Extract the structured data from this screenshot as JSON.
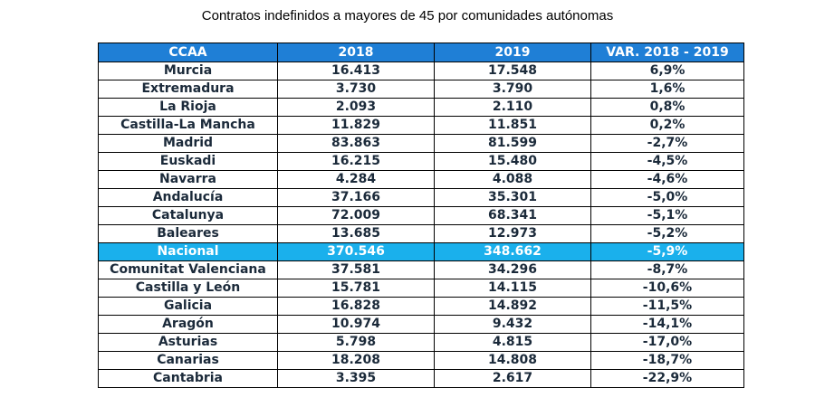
{
  "title": "Contratos indefinidos a mayores de 45 por comunidades autónomas",
  "table": {
    "headers": [
      "CCAA",
      "2018",
      "2019",
      "VAR. 2018 - 2019"
    ],
    "rows": [
      {
        "ccaa": "Murcia",
        "y2018": "16.413",
        "y2019": "17.548",
        "var": "6,9%",
        "highlight": false
      },
      {
        "ccaa": "Extremadura",
        "y2018": "3.730",
        "y2019": "3.790",
        "var": "1,6%",
        "highlight": false
      },
      {
        "ccaa": "La Rioja",
        "y2018": "2.093",
        "y2019": "2.110",
        "var": "0,8%",
        "highlight": false
      },
      {
        "ccaa": "Castilla-La Mancha",
        "y2018": "11.829",
        "y2019": "11.851",
        "var": "0,2%",
        "highlight": false
      },
      {
        "ccaa": "Madrid",
        "y2018": "83.863",
        "y2019": "81.599",
        "var": "-2,7%",
        "highlight": false
      },
      {
        "ccaa": "Euskadi",
        "y2018": "16.215",
        "y2019": "15.480",
        "var": "-4,5%",
        "highlight": false
      },
      {
        "ccaa": "Navarra",
        "y2018": "4.284",
        "y2019": "4.088",
        "var": "-4,6%",
        "highlight": false
      },
      {
        "ccaa": "Andalucía",
        "y2018": "37.166",
        "y2019": "35.301",
        "var": "-5,0%",
        "highlight": false
      },
      {
        "ccaa": "Catalunya",
        "y2018": "72.009",
        "y2019": "68.341",
        "var": "-5,1%",
        "highlight": false
      },
      {
        "ccaa": "Baleares",
        "y2018": "13.685",
        "y2019": "12.973",
        "var": "-5,2%",
        "highlight": false
      },
      {
        "ccaa": "Nacional",
        "y2018": "370.546",
        "y2019": "348.662",
        "var": "-5,9%",
        "highlight": true
      },
      {
        "ccaa": "Comunitat Valenciana",
        "y2018": "37.581",
        "y2019": "34.296",
        "var": "-8,7%",
        "highlight": false
      },
      {
        "ccaa": "Castilla y León",
        "y2018": "15.781",
        "y2019": "14.115",
        "var": "-10,6%",
        "highlight": false
      },
      {
        "ccaa": "Galicia",
        "y2018": "16.828",
        "y2019": "14.892",
        "var": "-11,5%",
        "highlight": false
      },
      {
        "ccaa": "Aragón",
        "y2018": "10.974",
        "y2019": "9.432",
        "var": "-14,1%",
        "highlight": false
      },
      {
        "ccaa": "Asturias",
        "y2018": "5.798",
        "y2019": "4.815",
        "var": "-17,0%",
        "highlight": false
      },
      {
        "ccaa": "Canarias",
        "y2018": "18.208",
        "y2019": "14.808",
        "var": "-18,7%",
        "highlight": false
      },
      {
        "ccaa": "Cantabria",
        "y2018": "3.395",
        "y2019": "2.617",
        "var": "-22,9%",
        "highlight": false
      }
    ]
  },
  "colors": {
    "header_bg": "#1f7fd6",
    "highlight_bg": "#1ab0ec",
    "header_text": "#ffffff",
    "cell_text": "#1b2a3a"
  }
}
